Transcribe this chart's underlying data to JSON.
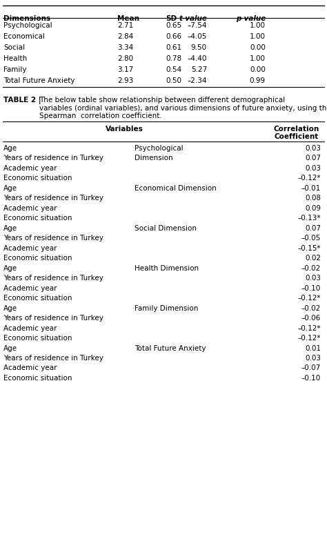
{
  "table1_headers": [
    "Dimensions",
    "Mean",
    "SD",
    "t-value",
    "p-value"
  ],
  "table1_rows": [
    [
      "Psychological",
      "2.71",
      "0.65",
      "–7.54",
      "1.00"
    ],
    [
      "Economical",
      "2.84",
      "0.66",
      "–4.05",
      "1.00"
    ],
    [
      "Social",
      "3.34",
      "0.61",
      "9.50",
      "0.00"
    ],
    [
      "Health",
      "2.80",
      "0.78",
      "–4.40",
      "1.00"
    ],
    [
      "Family",
      "3.17",
      "0.54",
      "5.27",
      "0.00"
    ],
    [
      "Total Future Anxiety",
      "2.93",
      "0.50",
      "–2.34",
      "0.99"
    ]
  ],
  "table2_caption": "TABLE 2 | The below table show relationship between different demographical variables (ordinal variables), and various dimensions of future anxiety, using the Spearman  correlation coefficient.",
  "table2_col1_header": "Variables",
  "table2_col2_header": "Correlation\nCoefficient",
  "table2_rows": [
    [
      "Age",
      "Psychological",
      "0.03"
    ],
    [
      "Years of residence in Turkey",
      "Dimension",
      "0.07"
    ],
    [
      "Academic year",
      "",
      "0.03"
    ],
    [
      "Economic situation",
      "",
      "–0.12*"
    ],
    [
      "Age",
      "Economical Dimension",
      "–0.01"
    ],
    [
      "Years of residence in Turkey",
      "",
      "0.08"
    ],
    [
      "Academic year",
      "",
      "0.09"
    ],
    [
      "Economic situation",
      "",
      "–0.13*"
    ],
    [
      "Age",
      "Social Dimension",
      "0.07"
    ],
    [
      "Years of residence in Turkey",
      "",
      "–0.05"
    ],
    [
      "Academic year",
      "",
      "–0.15*"
    ],
    [
      "Economic situation",
      "",
      "0.02"
    ],
    [
      "Age",
      "Health Dimension",
      "–0.02"
    ],
    [
      "Years of residence in Turkey",
      "",
      "0.03"
    ],
    [
      "Academic year",
      "",
      "–0.10"
    ],
    [
      "Economic situation",
      "",
      "–0.12*"
    ],
    [
      "Age",
      "Family Dimension",
      "–0.02"
    ],
    [
      "Years of residence in Turkey",
      "",
      "–0.06"
    ],
    [
      "Academic year",
      "",
      "–0.12*"
    ],
    [
      "Economic situation",
      "",
      "–0.12*"
    ],
    [
      "Age",
      "Total Future Anxiety",
      "0.01"
    ],
    [
      "Years of residence in Turkey",
      "",
      "0.03"
    ],
    [
      "Academic year",
      "",
      "–0.07"
    ],
    [
      "Economic situation",
      "",
      "–0.10"
    ]
  ],
  "bg_color": "#ffffff",
  "header_color": "#000000",
  "line_color": "#000000",
  "font_size": 7.5,
  "font_family": "DejaVu Sans"
}
